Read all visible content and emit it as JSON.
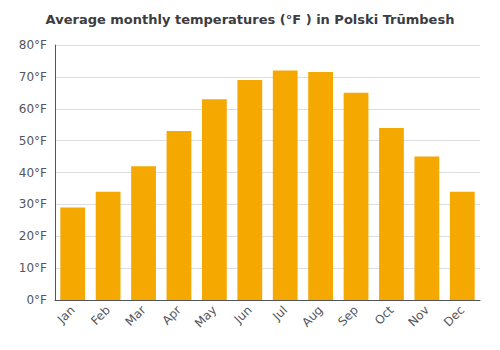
{
  "chart_data": {
    "type": "bar",
    "title": "Average monthly temperatures (°F ) in Polski Trūmbesh",
    "categories": [
      "Jan",
      "Feb",
      "Mar",
      "Apr",
      "May",
      "Jun",
      "Jul",
      "Aug",
      "Sep",
      "Oct",
      "Nov",
      "Dec"
    ],
    "values": [
      29.0,
      34.0,
      42.0,
      53.0,
      63.0,
      69.0,
      72.0,
      71.5,
      65.0,
      54.0,
      45.0,
      34.0
    ],
    "color": "#F5A800",
    "ylim": [
      0,
      80
    ],
    "yticks": [
      {
        "value": 0,
        "label": "0°F"
      },
      {
        "value": 10,
        "label": "10°F"
      },
      {
        "value": 20,
        "label": "20°F"
      },
      {
        "value": 30,
        "label": "30°F"
      },
      {
        "value": 40,
        "label": "40°F"
      },
      {
        "value": 50,
        "label": "50°F"
      },
      {
        "value": 60,
        "label": "60°F"
      },
      {
        "value": 70,
        "label": "70°F"
      },
      {
        "value": 80,
        "label": "80°F"
      }
    ],
    "grid": true
  }
}
